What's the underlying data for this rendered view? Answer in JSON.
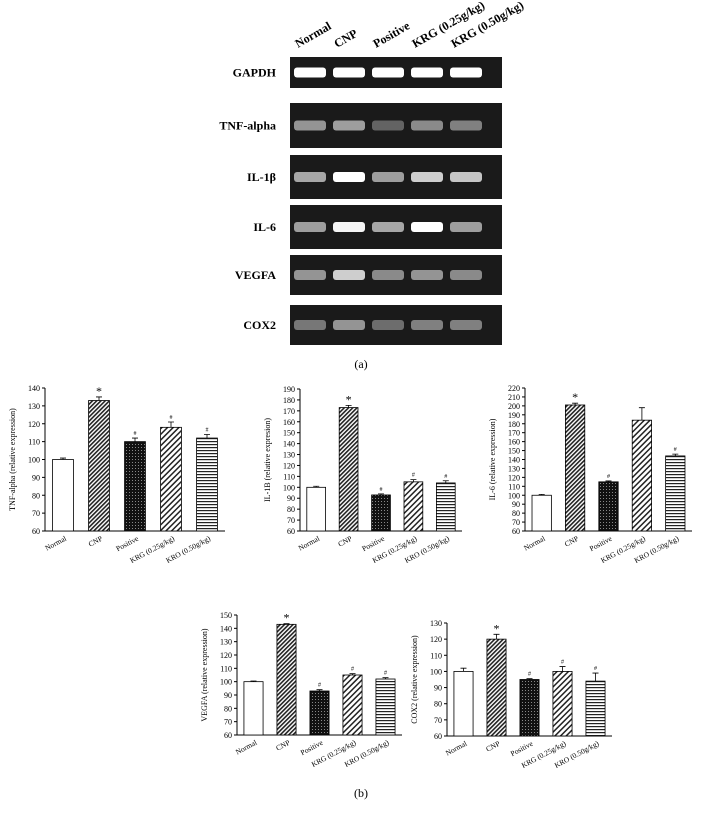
{
  "gel": {
    "columns": [
      "Normal",
      "CNP",
      "Positive",
      "KRG (0.25g/kg)",
      "KRG (0.50g/kg)"
    ],
    "rows": [
      "GAPDH",
      "TNF-alpha",
      "IL-1β",
      "IL-6",
      "VEGFA",
      "COX2"
    ]
  },
  "panel_labels": [
    "(a)",
    "(b)"
  ],
  "chart_data": [
    {
      "type": "bar",
      "ylabel": "TNF-alpha (relative expression)",
      "categories": [
        "Normal",
        "CNP",
        "Positive",
        "KRG (0.25g/kg)",
        "KRO (0.50g/kg)"
      ],
      "values": [
        100,
        133,
        110,
        118,
        112
      ],
      "errors": [
        0.8,
        2,
        2,
        3,
        2
      ],
      "annotations": [
        null,
        "*",
        "#",
        "#",
        "#"
      ],
      "patterns": [
        "none",
        "diagonal-dense",
        "dots",
        "diagonal",
        "horizontal"
      ],
      "ylim": [
        60,
        140
      ],
      "yticks": [
        60,
        70,
        80,
        90,
        100,
        110,
        120,
        130,
        140
      ]
    },
    {
      "type": "bar",
      "ylabel": "IL-1B (relative expresion)",
      "categories": [
        "Normal",
        "CNP",
        "Positive",
        "KRG (0.25g/kg)",
        "KRO (0.50g/kg)"
      ],
      "values": [
        100,
        173,
        93,
        105,
        104
      ],
      "errors": [
        1,
        2,
        1,
        2,
        2
      ],
      "annotations": [
        null,
        "*",
        "#",
        "#",
        "#"
      ],
      "patterns": [
        "none",
        "diagonal-dense",
        "dots",
        "diagonal",
        "horizontal"
      ],
      "ylim": [
        60,
        190
      ],
      "yticks": [
        60,
        70,
        80,
        90,
        100,
        110,
        120,
        130,
        140,
        150,
        160,
        170,
        180,
        190
      ]
    },
    {
      "type": "bar",
      "ylabel": "IL-6 (relative expression)",
      "categories": [
        "Normal",
        "CNP",
        "Positive",
        "KRG (0.25g/kg)",
        "KRO (0.50g/kg)"
      ],
      "values": [
        100,
        201,
        115,
        184,
        144
      ],
      "errors": [
        1,
        2,
        1,
        14,
        2
      ],
      "annotations": [
        null,
        "*",
        "#",
        null,
        "#"
      ],
      "patterns": [
        "none",
        "diagonal-dense",
        "dots",
        "diagonal",
        "horizontal"
      ],
      "ylim": [
        60,
        220
      ],
      "yticks": [
        60,
        70,
        80,
        90,
        100,
        110,
        120,
        130,
        140,
        150,
        160,
        170,
        180,
        190,
        200,
        210,
        220
      ]
    },
    {
      "type": "bar",
      "ylabel": "VEGFA (relative expression)",
      "categories": [
        "Normal",
        "CNP",
        "Positive",
        "KRG (0.25g/kg)",
        "KRO (0.50g/kg)"
      ],
      "values": [
        100,
        143,
        93,
        105,
        102
      ],
      "errors": [
        0.5,
        0.5,
        1,
        1,
        1
      ],
      "annotations": [
        null,
        "*",
        "#",
        "#",
        "#"
      ],
      "patterns": [
        "none",
        "diagonal-dense",
        "dots",
        "diagonal",
        "horizontal"
      ],
      "ylim": [
        60,
        150
      ],
      "yticks": [
        60,
        70,
        80,
        90,
        100,
        110,
        120,
        130,
        140,
        150
      ]
    },
    {
      "type": "bar",
      "ylabel": "COX2 (relative expression)",
      "categories": [
        "Normal",
        "CNP",
        "Positive",
        "KRG (0.25g/kg)",
        "KRO (0.50g/kg)"
      ],
      "values": [
        100,
        120,
        95,
        100,
        94
      ],
      "errors": [
        2,
        3,
        0.5,
        3,
        5
      ],
      "annotations": [
        null,
        "*",
        "#",
        "#",
        "#"
      ],
      "patterns": [
        "none",
        "diagonal-dense",
        "dots",
        "diagonal",
        "horizontal"
      ],
      "ylim": [
        60,
        130
      ],
      "yticks": [
        60,
        70,
        80,
        90,
        100,
        110,
        120,
        130
      ]
    }
  ]
}
